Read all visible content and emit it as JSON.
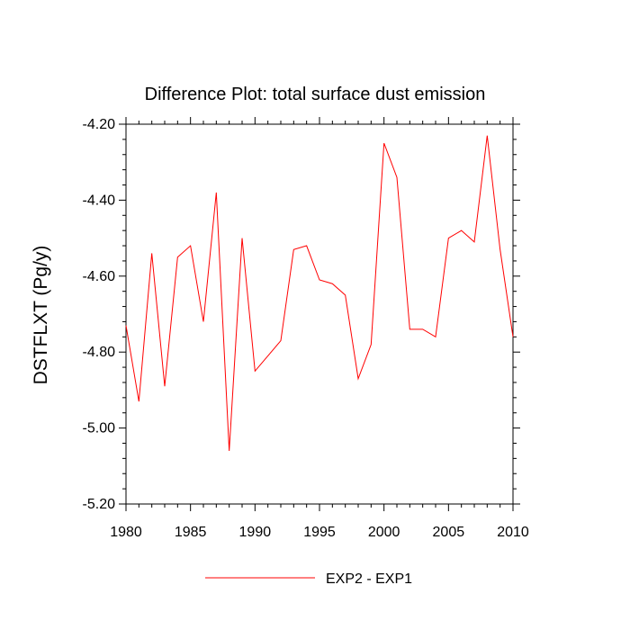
{
  "chart_data": {
    "type": "line",
    "title": "Difference Plot: total surface dust emission",
    "xlabel": "",
    "ylabel": "DSTFLXT  (Pg/y)",
    "xlim": [
      1980,
      2010
    ],
    "ylim": [
      -5.2,
      -4.2
    ],
    "xticks": [
      1980,
      1985,
      1990,
      1995,
      2000,
      2005,
      2010
    ],
    "xtick_labels": [
      "1980",
      "1985",
      "1990",
      "1995",
      "2000",
      "2005",
      "2010"
    ],
    "yticks": [
      -5.2,
      -5.0,
      -4.8,
      -4.6,
      -4.4,
      -4.2
    ],
    "ytick_labels": [
      "-5.20",
      "-5.00",
      "-4.80",
      "-4.60",
      "-4.40",
      "-4.20"
    ],
    "grid": false,
    "legend_position": "bottom-center",
    "series": [
      {
        "name": "EXP2 - EXP1",
        "color": "#ff0000",
        "x": [
          1980,
          1981,
          1982,
          1983,
          1984,
          1985,
          1986,
          1987,
          1988,
          1989,
          1990,
          1991,
          1992,
          1993,
          1994,
          1995,
          1996,
          1997,
          1998,
          1999,
          2000,
          2001,
          2002,
          2003,
          2004,
          2005,
          2006,
          2007,
          2008,
          2009,
          2010
        ],
        "y": [
          -4.73,
          -4.93,
          -4.54,
          -4.89,
          -4.55,
          -4.52,
          -4.72,
          -4.38,
          -5.06,
          -4.5,
          -4.85,
          -4.81,
          -4.77,
          -4.53,
          -4.52,
          -4.61,
          -4.62,
          -4.65,
          -4.87,
          -4.78,
          -4.25,
          -4.34,
          -4.74,
          -4.74,
          -4.76,
          -4.5,
          -4.48,
          -4.51,
          -4.23,
          -4.53,
          -4.76
        ]
      }
    ]
  }
}
